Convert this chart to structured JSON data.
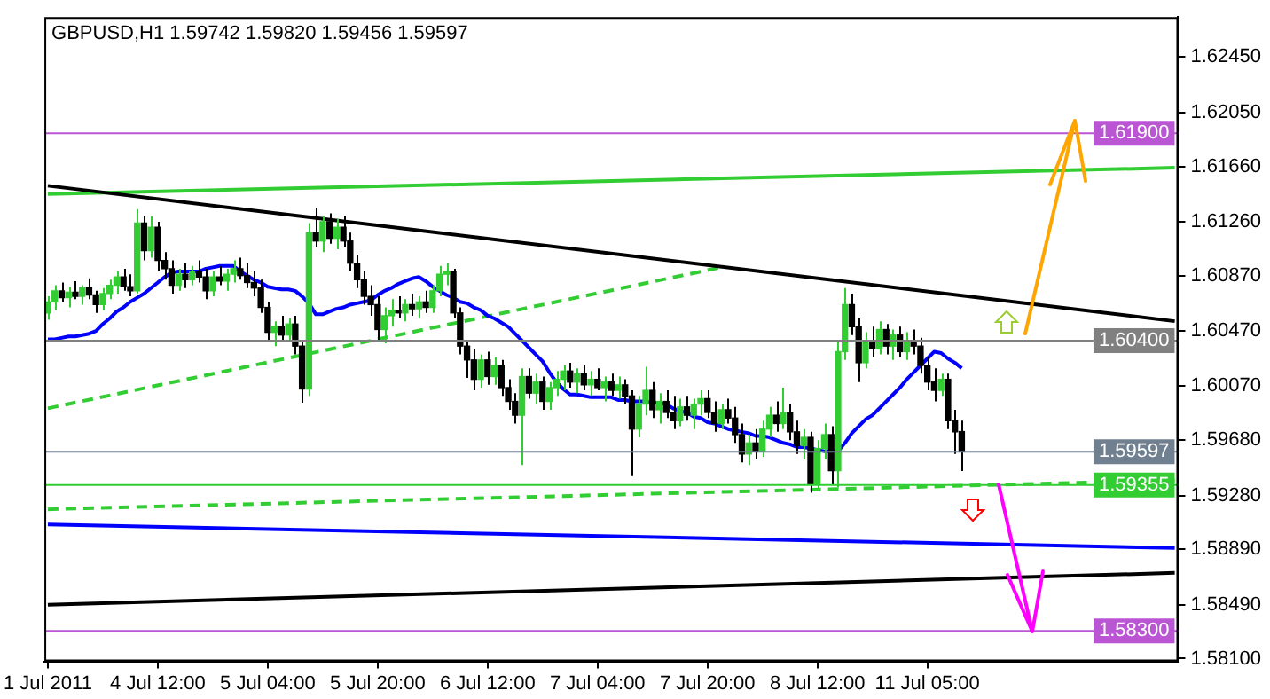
{
  "chart_data": {
    "type": "candlestick",
    "title": "GBPUSD,H1 1.59742 1.59820 1.59456 1.59597",
    "categories": [
      "1 Jul 2011",
      null,
      null,
      null,
      null,
      null,
      null,
      null,
      null,
      null,
      null,
      null,
      null,
      null,
      null,
      null,
      "4 Jul 12:00",
      null,
      null,
      null,
      null,
      null,
      null,
      null,
      null,
      null,
      null,
      null,
      null,
      null,
      null,
      null,
      "5 Jul 04:00",
      null,
      null,
      null,
      null,
      null,
      null,
      null,
      null,
      null,
      null,
      null,
      null,
      null,
      null,
      null,
      "5 Jul 20:00",
      null,
      null,
      null,
      null,
      null,
      null,
      null,
      null,
      null,
      null,
      null,
      null,
      null,
      null,
      null,
      "6 Jul 12:00",
      null,
      null,
      null,
      null,
      null,
      null,
      null,
      null,
      null,
      null,
      null,
      null,
      null,
      null,
      null,
      "7 Jul 04:00",
      null,
      null,
      null,
      null,
      null,
      null,
      null,
      null,
      null,
      null,
      null,
      null,
      null,
      null,
      null,
      "7 Jul 20:00",
      null,
      null,
      null,
      null,
      null,
      null,
      null,
      null,
      null,
      null,
      null,
      null,
      null,
      null,
      null,
      "8 Jul 12:00",
      null,
      null,
      null,
      null,
      null,
      null,
      null,
      null,
      null,
      null,
      null,
      null,
      null,
      null,
      null,
      "11 Jul 05:00",
      null,
      null,
      null,
      null,
      null,
      null,
      null,
      null,
      null,
      null,
      null,
      null,
      null,
      null,
      null,
      null,
      null,
      null,
      null,
      null,
      null,
      null,
      null,
      null,
      null,
      null,
      null,
      null,
      null,
      null,
      null,
      null,
      null,
      null,
      null,
      null
    ],
    "ohlc": [
      [
        1.606,
        1.6072,
        1.6055,
        1.6068
      ],
      [
        1.6068,
        1.608,
        1.6062,
        1.6076
      ],
      [
        1.6076,
        1.6082,
        1.6068,
        1.6071
      ],
      [
        1.6071,
        1.6079,
        1.6064,
        1.6075
      ],
      [
        1.6075,
        1.6083,
        1.607,
        1.6072
      ],
      [
        1.6072,
        1.608,
        1.6066,
        1.6078
      ],
      [
        1.6078,
        1.6085,
        1.607,
        1.6073
      ],
      [
        1.6073,
        1.6076,
        1.606,
        1.6066
      ],
      [
        1.6066,
        1.6078,
        1.6062,
        1.6074
      ],
      [
        1.6074,
        1.6084,
        1.607,
        1.608
      ],
      [
        1.608,
        1.609,
        1.6074,
        1.6086
      ],
      [
        1.6086,
        1.6092,
        1.6076,
        1.6079
      ],
      [
        1.6079,
        1.6088,
        1.6072,
        1.6076
      ],
      [
        1.6076,
        1.6135,
        1.6074,
        1.6125
      ],
      [
        1.6125,
        1.613,
        1.6098,
        1.6105
      ],
      [
        1.6105,
        1.613,
        1.61,
        1.6122
      ],
      [
        1.6122,
        1.6126,
        1.609,
        1.6098
      ],
      [
        1.6098,
        1.6104,
        1.6084,
        1.6092
      ],
      [
        1.6092,
        1.6098,
        1.6074,
        1.608
      ],
      [
        1.608,
        1.6092,
        1.6076,
        1.6088
      ],
      [
        1.6088,
        1.6096,
        1.6078,
        1.6084
      ],
      [
        1.6084,
        1.6094,
        1.608,
        1.609
      ],
      [
        1.609,
        1.6098,
        1.6082,
        1.6086
      ],
      [
        1.6086,
        1.6092,
        1.607,
        1.6076
      ],
      [
        1.6076,
        1.609,
        1.6072,
        1.6086
      ],
      [
        1.6086,
        1.6094,
        1.608,
        1.6083
      ],
      [
        1.6083,
        1.6092,
        1.6076,
        1.6088
      ],
      [
        1.6088,
        1.6098,
        1.6082,
        1.6092
      ],
      [
        1.6092,
        1.61,
        1.6084,
        1.6087
      ],
      [
        1.6087,
        1.6096,
        1.6078,
        1.6082
      ],
      [
        1.6082,
        1.609,
        1.6072,
        1.6078
      ],
      [
        1.6078,
        1.6084,
        1.606,
        1.6064
      ],
      [
        1.6064,
        1.6068,
        1.604,
        1.6046
      ],
      [
        1.6046,
        1.6054,
        1.6036,
        1.605
      ],
      [
        1.605,
        1.6058,
        1.604,
        1.6044
      ],
      [
        1.6044,
        1.6056,
        1.604,
        1.6052
      ],
      [
        1.6052,
        1.6058,
        1.603,
        1.6036
      ],
      [
        1.6036,
        1.604,
        1.5995,
        1.6005
      ],
      [
        1.6005,
        1.6125,
        1.6,
        1.6118
      ],
      [
        1.6118,
        1.6136,
        1.6108,
        1.6112
      ],
      [
        1.6112,
        1.613,
        1.6104,
        1.6126
      ],
      [
        1.6126,
        1.6132,
        1.611,
        1.6114
      ],
      [
        1.6114,
        1.6128,
        1.6106,
        1.6122
      ],
      [
        1.6122,
        1.613,
        1.6108,
        1.6112
      ],
      [
        1.6112,
        1.6118,
        1.609,
        1.6096
      ],
      [
        1.6096,
        1.6102,
        1.6078,
        1.6084
      ],
      [
        1.6084,
        1.609,
        1.6066,
        1.6072
      ],
      [
        1.6072,
        1.608,
        1.6058,
        1.6066
      ],
      [
        1.6066,
        1.6072,
        1.604,
        1.6048
      ],
      [
        1.6048,
        1.6064,
        1.6038,
        1.6058
      ],
      [
        1.6058,
        1.607,
        1.605,
        1.6062
      ],
      [
        1.6062,
        1.6072,
        1.6056,
        1.606
      ],
      [
        1.606,
        1.607,
        1.6054,
        1.6066
      ],
      [
        1.6066,
        1.6074,
        1.6058,
        1.6063
      ],
      [
        1.6063,
        1.6072,
        1.6056,
        1.6068
      ],
      [
        1.6068,
        1.6076,
        1.606,
        1.6064
      ],
      [
        1.6064,
        1.608,
        1.606,
        1.6076
      ],
      [
        1.6076,
        1.6094,
        1.6072,
        1.6088
      ],
      [
        1.6088,
        1.6096,
        1.608,
        1.609
      ],
      [
        1.609,
        1.6092,
        1.6056,
        1.606
      ],
      [
        1.606,
        1.6064,
        1.603,
        1.6036
      ],
      [
        1.6036,
        1.604,
        1.6013,
        1.6026
      ],
      [
        1.6026,
        1.6034,
        1.6004,
        1.6012
      ],
      [
        1.6012,
        1.603,
        1.6006,
        1.6026
      ],
      [
        1.6026,
        1.6032,
        1.6008,
        1.6014
      ],
      [
        1.6014,
        1.6028,
        1.6008,
        1.6022
      ],
      [
        1.6022,
        1.6026,
        1.6,
        1.6006
      ],
      [
        1.6006,
        1.6012,
        1.599,
        1.5996
      ],
      [
        1.5996,
        1.6002,
        1.598,
        1.5986
      ],
      [
        1.5986,
        1.602,
        1.595,
        1.6014
      ],
      [
        1.6014,
        1.602,
        1.5998,
        1.6002
      ],
      [
        1.6002,
        1.6016,
        1.5994,
        1.601
      ],
      [
        1.601,
        1.6014,
        1.599,
        1.5996
      ],
      [
        1.5996,
        1.601,
        1.599,
        1.6006
      ],
      [
        1.6006,
        1.6018,
        1.6,
        1.6012
      ],
      [
        1.6012,
        1.6022,
        1.6004,
        1.6018
      ],
      [
        1.6018,
        1.6024,
        1.6006,
        1.601
      ],
      [
        1.601,
        1.602,
        1.6002,
        1.6016
      ],
      [
        1.6016,
        1.6022,
        1.6004,
        1.6008
      ],
      [
        1.6008,
        1.6018,
        1.6,
        1.6012
      ],
      [
        1.6012,
        1.602,
        1.6004,
        1.6006
      ],
      [
        1.6006,
        1.6014,
        1.5996,
        1.601
      ],
      [
        1.601,
        1.6016,
        1.6,
        1.6004
      ],
      [
        1.6004,
        1.6014,
        1.5998,
        1.6008
      ],
      [
        1.6008,
        1.6012,
        1.5994,
        1.6
      ],
      [
        1.6,
        1.6004,
        1.5942,
        1.5976
      ],
      [
        1.5976,
        1.6,
        1.597,
        1.5994
      ],
      [
        1.5994,
        1.6021,
        1.5986,
        1.6004
      ],
      [
        1.6004,
        1.601,
        1.5984,
        1.599
      ],
      [
        1.599,
        1.6002,
        1.598,
        1.5996
      ],
      [
        1.5996,
        1.6004,
        1.5984,
        1.5988
      ],
      [
        1.5988,
        1.6,
        1.5976,
        1.5982
      ],
      [
        1.5982,
        1.5998,
        1.5978,
        1.5992
      ],
      [
        1.5992,
        1.6,
        1.5982,
        1.5986
      ],
      [
        1.5986,
        1.5998,
        1.5976,
        1.5994
      ],
      [
        1.5994,
        1.6004,
        1.5986,
        1.5998
      ],
      [
        1.5998,
        1.6004,
        1.5984,
        1.5988
      ],
      [
        1.5988,
        1.5996,
        1.5974,
        1.598
      ],
      [
        1.598,
        1.5994,
        1.5976,
        1.599
      ],
      [
        1.599,
        1.5998,
        1.598,
        1.5984
      ],
      [
        1.5984,
        1.5992,
        1.5966,
        1.5972
      ],
      [
        1.5972,
        1.598,
        1.5952,
        1.5958
      ],
      [
        1.5958,
        1.5972,
        1.595,
        1.5966
      ],
      [
        1.5966,
        1.5976,
        1.5954,
        1.596
      ],
      [
        1.596,
        1.5982,
        1.5956,
        1.5976
      ],
      [
        1.5976,
        1.5992,
        1.597,
        1.5986
      ],
      [
        1.5986,
        1.5996,
        1.5974,
        1.598
      ],
      [
        1.598,
        1.6006,
        1.5976,
        1.5988
      ],
      [
        1.5988,
        1.5994,
        1.5968,
        1.5974
      ],
      [
        1.5974,
        1.5982,
        1.5958,
        1.5964
      ],
      [
        1.5964,
        1.5976,
        1.5954,
        1.597
      ],
      [
        1.597,
        1.5974,
        1.593,
        1.5936
      ],
      [
        1.5936,
        1.5968,
        1.5932,
        1.5962
      ],
      [
        1.5962,
        1.598,
        1.5954,
        1.5972
      ],
      [
        1.5972,
        1.5978,
        1.5936,
        1.5946
      ],
      [
        1.5946,
        1.604,
        1.5934,
        1.6032
      ],
      [
        1.6032,
        1.6078,
        1.6026,
        1.6066
      ],
      [
        1.6066,
        1.6074,
        1.6044,
        1.605
      ],
      [
        1.605,
        1.6056,
        1.601,
        1.6024
      ],
      [
        1.6024,
        1.6046,
        1.602,
        1.604
      ],
      [
        1.604,
        1.605,
        1.6028,
        1.6034
      ],
      [
        1.6034,
        1.6054,
        1.603,
        1.6048
      ],
      [
        1.6048,
        1.6052,
        1.603,
        1.6036
      ],
      [
        1.6036,
        1.6048,
        1.6026,
        1.6044
      ],
      [
        1.6044,
        1.605,
        1.6028,
        1.6032
      ],
      [
        1.6032,
        1.6046,
        1.6026,
        1.604
      ],
      [
        1.604,
        1.6048,
        1.603,
        1.6036
      ],
      [
        1.6036,
        1.6042,
        1.6016,
        1.6022
      ],
      [
        1.6022,
        1.6028,
        1.6004,
        1.601
      ],
      [
        1.601,
        1.602,
        1.5996,
        1.6004
      ],
      [
        1.6004,
        1.6016,
        1.6,
        1.6012
      ],
      [
        1.6012,
        1.6016,
        1.5976,
        1.5982
      ],
      [
        1.5982,
        1.599,
        1.5958,
        1.5974
      ],
      [
        1.59742,
        1.5982,
        1.59456,
        1.59597
      ],
      null,
      null,
      null,
      null,
      null,
      null,
      null,
      null,
      null,
      null,
      null,
      null,
      null,
      null,
      null,
      null,
      null,
      null,
      null,
      null,
      null,
      null,
      null,
      null,
      null,
      null,
      null,
      null,
      null,
      null,
      null
    ],
    "colors": [
      "#32cd32",
      "#32cd32",
      "#000000",
      "#32cd32",
      "#000000",
      "#32cd32",
      "#000000",
      "#000000",
      "#32cd32",
      "#32cd32",
      "#32cd32",
      "#000000",
      "#000000",
      "#32cd32",
      "#000000",
      "#32cd32",
      "#000000",
      "#000000",
      "#000000",
      "#32cd32",
      "#000000",
      "#32cd32",
      "#000000",
      "#000000",
      "#32cd32",
      "#000000",
      "#32cd32",
      "#32cd32",
      "#000000",
      "#000000",
      "#000000",
      "#000000",
      "#000000",
      "#32cd32",
      "#000000",
      "#32cd32",
      "#000000",
      "#000000",
      "#32cd32",
      "#000000",
      "#32cd32",
      "#000000",
      "#32cd32",
      "#000000",
      "#000000",
      "#000000",
      "#000000",
      "#000000",
      "#000000",
      "#32cd32",
      "#32cd32",
      "#000000",
      "#32cd32",
      "#000000",
      "#32cd32",
      "#000000",
      "#32cd32",
      "#32cd32",
      "#32cd32",
      "#000000",
      "#000000",
      "#000000",
      "#000000",
      "#32cd32",
      "#000000",
      "#32cd32",
      "#000000",
      "#000000",
      "#000000",
      "#32cd32",
      "#000000",
      "#32cd32",
      "#000000",
      "#32cd32",
      "#32cd32",
      "#32cd32",
      "#000000",
      "#32cd32",
      "#000000",
      "#32cd32",
      "#000000",
      "#32cd32",
      "#000000",
      "#32cd32",
      "#000000",
      "#000000",
      "#32cd32",
      "#32cd32",
      "#000000",
      "#32cd32",
      "#000000",
      "#000000",
      "#32cd32",
      "#000000",
      "#32cd32",
      "#32cd32",
      "#000000",
      "#000000",
      "#32cd32",
      "#000000",
      "#000000",
      "#000000",
      "#32cd32",
      "#000000",
      "#32cd32",
      "#32cd32",
      "#000000",
      "#32cd32",
      "#000000",
      "#000000",
      "#32cd32",
      "#000000",
      "#32cd32",
      "#32cd32",
      "#000000",
      "#32cd32",
      "#32cd32",
      "#000000",
      "#000000",
      "#32cd32",
      "#000000",
      "#32cd32",
      "#000000",
      "#32cd32",
      "#000000",
      "#32cd32",
      "#000000",
      "#000000",
      "#000000",
      "#000000",
      "#32cd32",
      "#000000",
      "#000000",
      "#000000",
      null,
      null,
      null,
      null,
      null,
      null,
      null,
      null,
      null,
      null,
      null,
      null,
      null,
      null,
      null,
      null,
      null,
      null,
      null,
      null,
      null,
      null,
      null,
      null,
      null,
      null,
      null,
      null,
      null,
      null,
      null
    ],
    "series": [
      {
        "type": "line",
        "color": "#0000ff",
        "values": [
          1.6041,
          1.6041,
          1.6042,
          1.6043,
          1.6043,
          1.6044,
          1.6045,
          1.6047,
          1.6052,
          1.6056,
          1.6061,
          1.6064,
          1.6068,
          1.6071,
          1.6074,
          1.6078,
          1.6082,
          1.6086,
          1.6089,
          1.609,
          1.609,
          1.609,
          1.609,
          1.6092,
          1.6093,
          1.6094,
          1.6094,
          1.6094,
          1.609,
          1.6087,
          1.6084,
          1.6082,
          1.6079,
          1.6078,
          1.6077,
          1.6077,
          1.6076,
          1.6072,
          1.6067,
          1.6059,
          1.6059,
          1.6061,
          1.6063,
          1.6064,
          1.6066,
          1.6067,
          1.6068,
          1.6069,
          1.6073,
          1.6076,
          1.6078,
          1.6081,
          1.6083,
          1.6085,
          1.6086,
          1.6083,
          1.6079,
          1.6076,
          1.6073,
          1.6071,
          1.6068,
          1.6067,
          1.6064,
          1.6062,
          1.6058,
          1.6056,
          1.6053,
          1.605,
          1.6045,
          1.604,
          1.6035,
          1.603,
          1.6025,
          1.6017,
          1.601,
          1.6005,
          1.6001,
          1.6001,
          1.6,
          1.5999,
          1.5999,
          1.5999,
          1.5999,
          1.5997,
          1.5997,
          1.5996,
          1.5996,
          1.5996,
          1.5995,
          1.5995,
          1.5994,
          1.5991,
          1.5989,
          1.5988,
          1.5985,
          1.5984,
          1.5981,
          1.598,
          1.5978,
          1.5976,
          1.5975,
          1.5974,
          1.5973,
          1.5971,
          1.5971,
          1.597,
          1.5968,
          1.5966,
          1.5965,
          1.5963,
          1.5963,
          1.5962,
          1.5961,
          1.596,
          1.596,
          1.596,
          1.5966,
          1.5973,
          1.5978,
          1.5983,
          1.5986,
          1.5991,
          1.5996,
          1.6001,
          1.6006,
          1.6012,
          1.6017,
          1.6022,
          1.6027,
          1.6032,
          1.6031,
          1.6027,
          1.6024,
          1.602,
          null,
          null,
          null,
          null,
          null,
          null,
          null,
          null,
          null,
          null,
          null,
          null,
          null,
          null,
          null,
          null,
          null,
          null,
          null,
          null,
          null,
          null,
          null,
          null,
          null,
          null,
          null,
          null,
          null,
          null,
          null
        ]
      },
      {
        "type": "line",
        "color": "#000000",
        "values": [
          1.6152,
          null,
          null,
          null,
          null,
          null,
          null,
          null,
          null,
          null,
          null,
          null,
          null,
          null,
          null,
          null,
          null,
          null,
          null,
          null,
          null,
          null,
          null,
          null,
          null,
          null,
          null,
          null,
          null,
          null,
          null,
          null,
          null,
          null,
          null,
          null,
          null,
          null,
          null,
          null,
          null,
          null,
          null,
          null,
          null,
          null,
          null,
          null,
          null,
          null,
          null,
          null,
          null,
          null,
          null,
          null,
          null,
          null,
          null,
          null,
          null,
          null,
          null,
          null,
          null,
          null,
          null,
          null,
          null,
          null,
          null,
          null,
          null,
          null,
          null,
          null,
          null,
          null,
          null,
          null,
          null,
          null,
          null,
          null,
          null,
          null,
          null,
          null,
          null,
          null,
          null,
          null,
          null,
          null,
          null,
          null,
          null,
          null,
          null,
          null,
          null,
          null,
          null,
          null,
          null,
          null,
          null,
          null,
          null,
          null,
          null,
          null,
          null,
          null,
          null,
          null,
          null,
          null,
          null,
          null,
          null,
          null,
          null,
          null,
          null,
          null,
          null,
          null,
          null,
          null,
          null,
          null,
          null,
          null,
          null,
          null,
          null,
          null,
          null,
          null,
          null,
          null,
          null,
          null,
          null,
          null,
          null,
          null,
          null,
          null,
          null,
          null,
          null,
          null,
          null,
          null,
          null,
          null,
          null,
          null,
          null,
          null,
          null,
          null,
          1.6054
        ]
      },
      {
        "type": "line",
        "color": "#32cd32",
        "values": [
          1.6146,
          null,
          null,
          null,
          null,
          null,
          null,
          null,
          null,
          null,
          null,
          null,
          null,
          null,
          null,
          null,
          null,
          null,
          null,
          null,
          null,
          null,
          null,
          null,
          null,
          null,
          null,
          null,
          null,
          null,
          null,
          null,
          null,
          null,
          null,
          null,
          null,
          null,
          null,
          null,
          null,
          null,
          null,
          null,
          null,
          null,
          null,
          null,
          null,
          null,
          null,
          null,
          null,
          null,
          null,
          null,
          null,
          null,
          null,
          null,
          null,
          null,
          null,
          null,
          null,
          null,
          null,
          null,
          null,
          null,
          null,
          null,
          null,
          null,
          null,
          null,
          null,
          null,
          null,
          null,
          null,
          null,
          null,
          null,
          null,
          null,
          null,
          null,
          null,
          null,
          null,
          null,
          null,
          null,
          null,
          null,
          null,
          null,
          null,
          null,
          null,
          null,
          null,
          null,
          null,
          null,
          null,
          null,
          null,
          null,
          null,
          null,
          null,
          null,
          null,
          null,
          null,
          null,
          null,
          null,
          null,
          null,
          null,
          null,
          null,
          null,
          null,
          null,
          null,
          null,
          null,
          null,
          null,
          null,
          null,
          null,
          null,
          null,
          null,
          null,
          null,
          null,
          null,
          null,
          null,
          null,
          null,
          null,
          null,
          null,
          null,
          null,
          null,
          null,
          null,
          null,
          null,
          null,
          null,
          null,
          null,
          null,
          null,
          null,
          1.6165
        ]
      },
      {
        "type": "line",
        "color": "#32cd32",
        "line_style": "dashed",
        "values": [
          1.5991,
          null,
          null,
          null,
          null,
          null,
          null,
          null,
          null,
          null,
          null,
          null,
          null,
          null,
          null,
          null,
          null,
          null,
          null,
          null,
          null,
          null,
          null,
          null,
          null,
          null,
          null,
          null,
          null,
          null,
          null,
          null,
          null,
          null,
          null,
          null,
          null,
          null,
          null,
          null,
          null,
          null,
          null,
          null,
          null,
          null,
          null,
          null,
          null,
          null,
          null,
          null,
          null,
          null,
          null,
          null,
          null,
          null,
          null,
          null,
          null,
          null,
          null,
          null,
          null,
          null,
          null,
          null,
          null,
          null,
          null,
          null,
          null,
          null,
          null,
          null,
          null,
          null,
          null,
          null,
          null,
          null,
          null,
          null,
          null,
          null,
          null,
          null,
          null,
          null,
          null,
          null,
          null,
          null,
          null,
          null,
          null,
          null,
          1.6093,
          null,
          null,
          null,
          null,
          null,
          null,
          null,
          null,
          null,
          null,
          null,
          null,
          null,
          null,
          null,
          null,
          null,
          null,
          null,
          null,
          null,
          null,
          null,
          null,
          null,
          null,
          null,
          null,
          null,
          null,
          null,
          null,
          null,
          null,
          null,
          null,
          null,
          null,
          null,
          null,
          null,
          null,
          null,
          null,
          null,
          null,
          null,
          null,
          null,
          null,
          null,
          null,
          null,
          null,
          null,
          null,
          null,
          null,
          null,
          null,
          null,
          null,
          null,
          null,
          null,
          null
        ]
      },
      {
        "type": "line",
        "color": "#32cd32",
        "line_style": "dashed",
        "values": [
          1.5918,
          null,
          null,
          null,
          null,
          null,
          null,
          null,
          null,
          null,
          null,
          null,
          null,
          null,
          null,
          null,
          null,
          null,
          null,
          null,
          null,
          null,
          null,
          null,
          null,
          null,
          null,
          null,
          null,
          null,
          null,
          null,
          null,
          null,
          null,
          null,
          null,
          null,
          null,
          null,
          null,
          null,
          null,
          null,
          null,
          null,
          null,
          null,
          null,
          null,
          null,
          null,
          null,
          null,
          null,
          null,
          null,
          null,
          null,
          null,
          null,
          null,
          null,
          null,
          null,
          null,
          null,
          null,
          null,
          null,
          null,
          null,
          null,
          null,
          null,
          null,
          null,
          null,
          null,
          null,
          null,
          null,
          null,
          null,
          null,
          null,
          null,
          null,
          null,
          null,
          null,
          null,
          null,
          null,
          null,
          null,
          null,
          null,
          null,
          null,
          null,
          null,
          null,
          null,
          null,
          null,
          null,
          null,
          null,
          null,
          null,
          null,
          null,
          null,
          null,
          null,
          null,
          null,
          null,
          null,
          null,
          null,
          null,
          null,
          null,
          null,
          null,
          null,
          null,
          null,
          null,
          null,
          null,
          null,
          null,
          null,
          null,
          null,
          null,
          null,
          null,
          null,
          null,
          null,
          null,
          null,
          null,
          null,
          null,
          null,
          null,
          null,
          null,
          null,
          null,
          null,
          null,
          null,
          null,
          null,
          null,
          null,
          null,
          null,
          1.5939
        ]
      },
      {
        "type": "line",
        "color": "#0000ff",
        "values": [
          1.5907,
          null,
          null,
          null,
          null,
          null,
          null,
          null,
          null,
          null,
          null,
          null,
          null,
          null,
          null,
          null,
          null,
          null,
          null,
          null,
          null,
          null,
          null,
          null,
          null,
          null,
          null,
          null,
          null,
          null,
          null,
          null,
          null,
          null,
          null,
          null,
          null,
          null,
          null,
          null,
          null,
          null,
          null,
          null,
          null,
          null,
          null,
          null,
          null,
          null,
          null,
          null,
          null,
          null,
          null,
          null,
          null,
          null,
          null,
          null,
          null,
          null,
          null,
          null,
          null,
          null,
          null,
          null,
          null,
          null,
          null,
          null,
          null,
          null,
          null,
          null,
          null,
          null,
          null,
          null,
          null,
          null,
          null,
          null,
          null,
          null,
          null,
          null,
          null,
          null,
          null,
          null,
          null,
          null,
          null,
          null,
          null,
          null,
          null,
          null,
          null,
          null,
          null,
          null,
          null,
          null,
          null,
          null,
          null,
          null,
          null,
          null,
          null,
          null,
          null,
          null,
          null,
          null,
          null,
          null,
          null,
          null,
          null,
          null,
          null,
          null,
          null,
          null,
          null,
          null,
          null,
          null,
          null,
          null,
          null,
          null,
          null,
          null,
          null,
          null,
          null,
          null,
          null,
          null,
          null,
          null,
          null,
          null,
          null,
          null,
          null,
          null,
          null,
          null,
          null,
          null,
          null,
          null,
          null,
          null,
          null,
          null,
          null,
          null,
          1.589
        ]
      },
      {
        "type": "line",
        "color": "#000000",
        "values": [
          1.5849,
          null,
          null,
          null,
          null,
          null,
          null,
          null,
          null,
          null,
          null,
          null,
          null,
          null,
          null,
          null,
          null,
          null,
          null,
          null,
          null,
          null,
          null,
          null,
          null,
          null,
          null,
          null,
          null,
          null,
          null,
          null,
          null,
          null,
          null,
          null,
          null,
          null,
          null,
          null,
          null,
          null,
          null,
          null,
          null,
          null,
          null,
          null,
          null,
          null,
          null,
          null,
          null,
          null,
          null,
          null,
          null,
          null,
          null,
          null,
          null,
          null,
          null,
          null,
          null,
          null,
          null,
          null,
          null,
          null,
          null,
          null,
          null,
          null,
          null,
          null,
          null,
          null,
          null,
          null,
          null,
          null,
          null,
          null,
          null,
          null,
          null,
          null,
          null,
          null,
          null,
          null,
          null,
          null,
          null,
          null,
          null,
          null,
          null,
          null,
          null,
          null,
          null,
          null,
          null,
          null,
          null,
          null,
          null,
          null,
          null,
          null,
          null,
          null,
          null,
          null,
          null,
          null,
          null,
          null,
          null,
          null,
          null,
          null,
          null,
          null,
          null,
          null,
          null,
          null,
          null,
          null,
          null,
          null,
          null,
          null,
          null,
          null,
          null,
          null,
          null,
          null,
          null,
          null,
          null,
          null,
          null,
          null,
          null,
          null,
          null,
          null,
          null,
          null,
          null,
          null,
          null,
          null,
          null,
          null,
          null,
          null,
          null,
          null,
          1.5872
        ]
      }
    ],
    "ref_lines": [
      {
        "axis": "y",
        "value": 1.619,
        "label": "1.61900",
        "color": "#ba55d3"
      },
      {
        "axis": "y",
        "value": 1.604,
        "label": "1.60400",
        "color": "#808080"
      },
      {
        "axis": "y",
        "value": 1.59597,
        "label": "1.59597",
        "color": "#708090"
      },
      {
        "axis": "y",
        "value": 1.59355,
        "label": "1.59355",
        "color": "#32cd32"
      },
      {
        "axis": "y",
        "value": 1.583,
        "label": "1.58300",
        "color": "#ba55d3"
      }
    ],
    "ylim": [
      1.5808,
      1.6274
    ],
    "yticks": [
      {
        "value": 1.6245,
        "label": "1.62450"
      },
      {
        "value": 1.6205,
        "label": "1.62050"
      },
      {
        "value": 1.6166,
        "label": "1.61660"
      },
      {
        "value": 1.6126,
        "label": "1.61260"
      },
      {
        "value": 1.6087,
        "label": "1.60870"
      },
      {
        "value": 1.6047,
        "label": "1.60470"
      },
      {
        "value": 1.6007,
        "label": "1.60070"
      },
      {
        "value": 1.5968,
        "label": "1.59680"
      },
      {
        "value": 1.5928,
        "label": "1.59280"
      },
      {
        "value": 1.5889,
        "label": "1.58890"
      },
      {
        "value": 1.5849,
        "label": "1.58490"
      },
      {
        "value": 1.581,
        "label": "1.58100"
      }
    ],
    "marker": "none"
  }
}
